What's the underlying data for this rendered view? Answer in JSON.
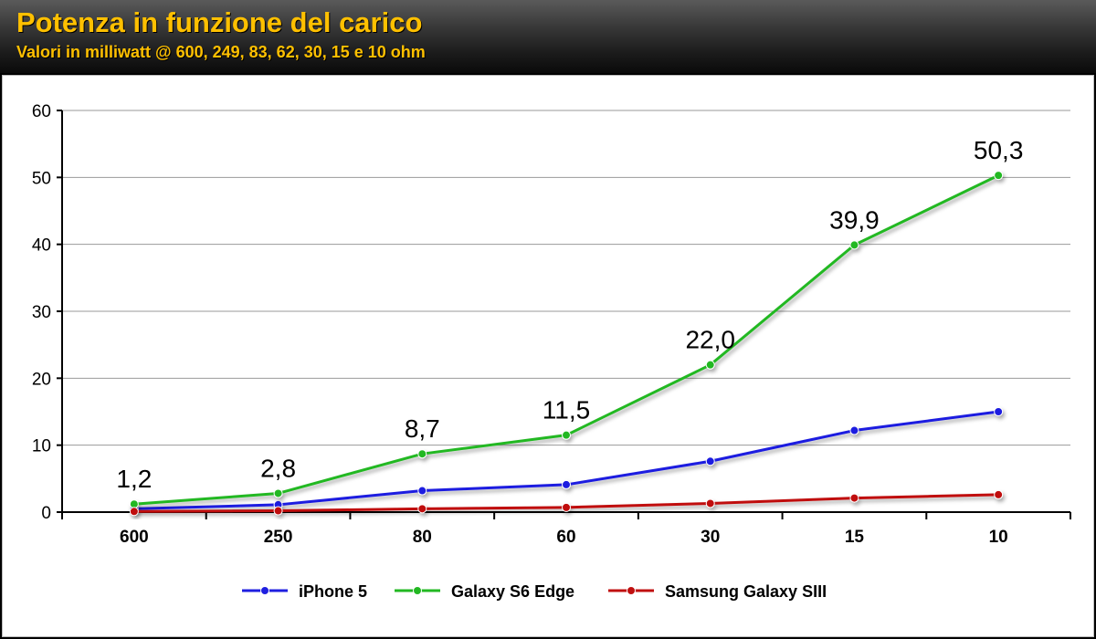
{
  "header": {
    "title": "Potenza in funzione del carico",
    "subtitle": "Valori in milliwatt @ 600, 249, 83, 62, 30, 15 e 10 ohm"
  },
  "chart_data": {
    "type": "line",
    "title": "Potenza in funzione del carico",
    "subtitle": "Valori in milliwatt @ 600, 249, 83, 62, 30, 15 e 10 ohm",
    "categories": [
      "600",
      "250",
      "80",
      "60",
      "30",
      "15",
      "10"
    ],
    "ylim": [
      0,
      60
    ],
    "yticks": [
      0,
      10,
      20,
      30,
      40,
      50,
      60
    ],
    "grid": true,
    "legend_position": "bottom",
    "series": [
      {
        "name": "iPhone 5",
        "color": "#1f1fe0",
        "values": [
          0.5,
          1.1,
          3.2,
          4.1,
          7.6,
          12.2,
          15.0
        ]
      },
      {
        "name": "Galaxy S6 Edge",
        "color": "#22b822",
        "values": [
          1.2,
          2.8,
          8.7,
          11.5,
          22.0,
          39.9,
          50.3
        ],
        "data_labels": [
          "1,2",
          "2,8",
          "8,7",
          "11,5",
          "22,0",
          "39,9",
          "50,3"
        ]
      },
      {
        "name": "Samsung Galaxy SIII",
        "color": "#c01010",
        "values": [
          0.1,
          0.2,
          0.5,
          0.7,
          1.3,
          2.1,
          2.6
        ]
      }
    ]
  }
}
